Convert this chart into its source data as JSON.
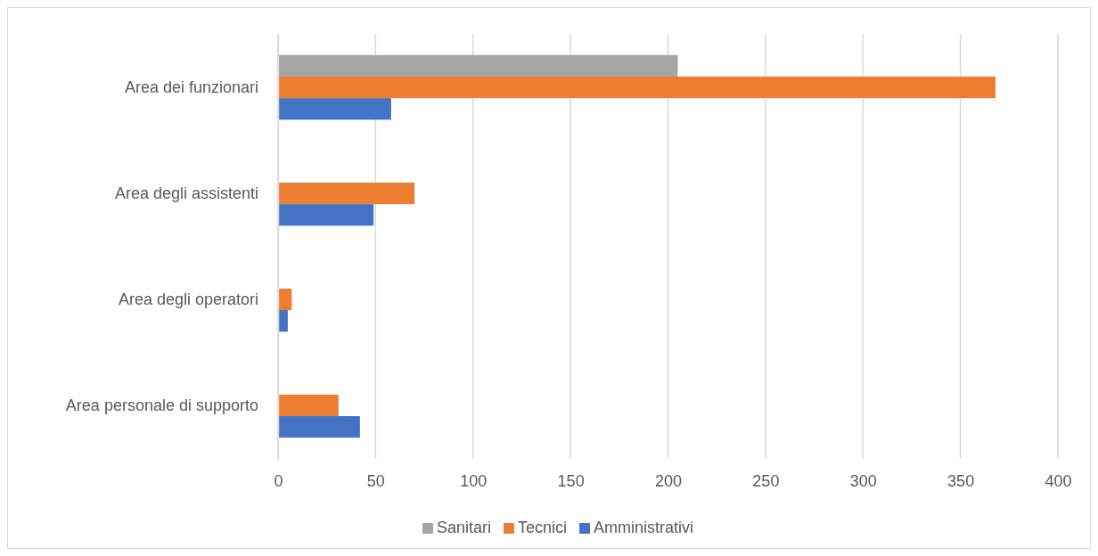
{
  "chart_data": {
    "type": "bar",
    "orientation": "horizontal",
    "categories": [
      "Area dei funzionari",
      "Area degli assistenti",
      "Area degli operatori",
      "Area personale di supporto"
    ],
    "series": [
      {
        "name": "Sanitari",
        "color": "#a5a5a5",
        "values": [
          205,
          null,
          null,
          null
        ]
      },
      {
        "name": "Tecnici",
        "color": "#ed7d31",
        "values": [
          368,
          70,
          7,
          31
        ]
      },
      {
        "name": "Amministrativi",
        "color": "#4472c4",
        "values": [
          58,
          49,
          5,
          42
        ]
      }
    ],
    "xlim": [
      0,
      400
    ],
    "xticks": [
      0,
      50,
      100,
      150,
      200,
      250,
      300,
      350,
      400
    ],
    "grid": "x",
    "legend": "bottom"
  }
}
